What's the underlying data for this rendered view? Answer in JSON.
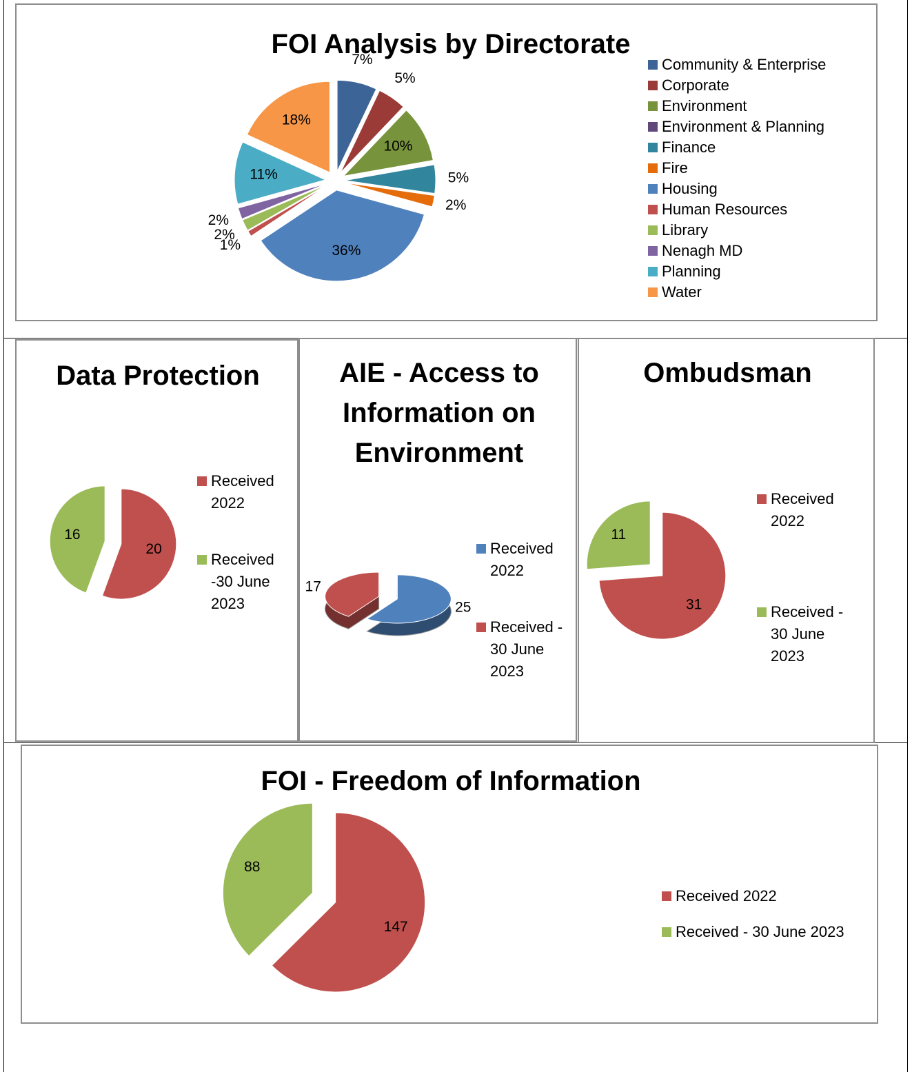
{
  "chart_data": [
    {
      "type": "pie",
      "title": "FOI Analysis by Directorate",
      "categories": [
        "Community & Enterprise",
        "Corporate",
        "Environment",
        "Environment & Planning",
        "Finance",
        "Fire",
        "Housing",
        "Human Resources",
        "Library",
        "Nenagh MD",
        "Planning",
        "Water"
      ],
      "values": [
        7,
        5,
        10,
        0,
        5,
        2,
        36,
        1,
        2,
        2,
        11,
        18
      ],
      "value_labels": [
        "7%",
        "5%",
        "10%",
        null,
        "5%",
        "2%",
        "36%",
        "1%",
        "2%",
        "2%",
        "11%",
        "18%"
      ],
      "colors": [
        "#3c6496",
        "#9b3b38",
        "#77933c",
        "#60497a",
        "#31859c",
        "#e46c0a",
        "#4f81bd",
        "#c0504d",
        "#9bbb59",
        "#8064a2",
        "#4bacc6",
        "#f79646"
      ]
    },
    {
      "type": "pie",
      "title": "Data Protection",
      "categories": [
        "Received 2022",
        "Received -30 June 2023"
      ],
      "values": [
        20,
        16
      ],
      "colors": [
        "#c0504d",
        "#9bbb59"
      ]
    },
    {
      "type": "pie3d",
      "title": "AIE - Access to Information on Environment",
      "categories": [
        "Received 2022",
        "Received - 30 June 2023"
      ],
      "values": [
        25,
        17
      ],
      "colors": [
        "#4f81bd",
        "#c0504d"
      ]
    },
    {
      "type": "pie",
      "title": "Ombudsman",
      "categories": [
        "Received 2022",
        "Received - 30 June 2023"
      ],
      "values": [
        31,
        11
      ],
      "colors": [
        "#c0504d",
        "#9bbb59"
      ]
    },
    {
      "type": "pie",
      "title": "FOI - Freedom of Information",
      "categories": [
        "Received 2022",
        "Received - 30 June 2023"
      ],
      "values": [
        147,
        88
      ],
      "colors": [
        "#c0504d",
        "#9bbb59"
      ]
    }
  ]
}
